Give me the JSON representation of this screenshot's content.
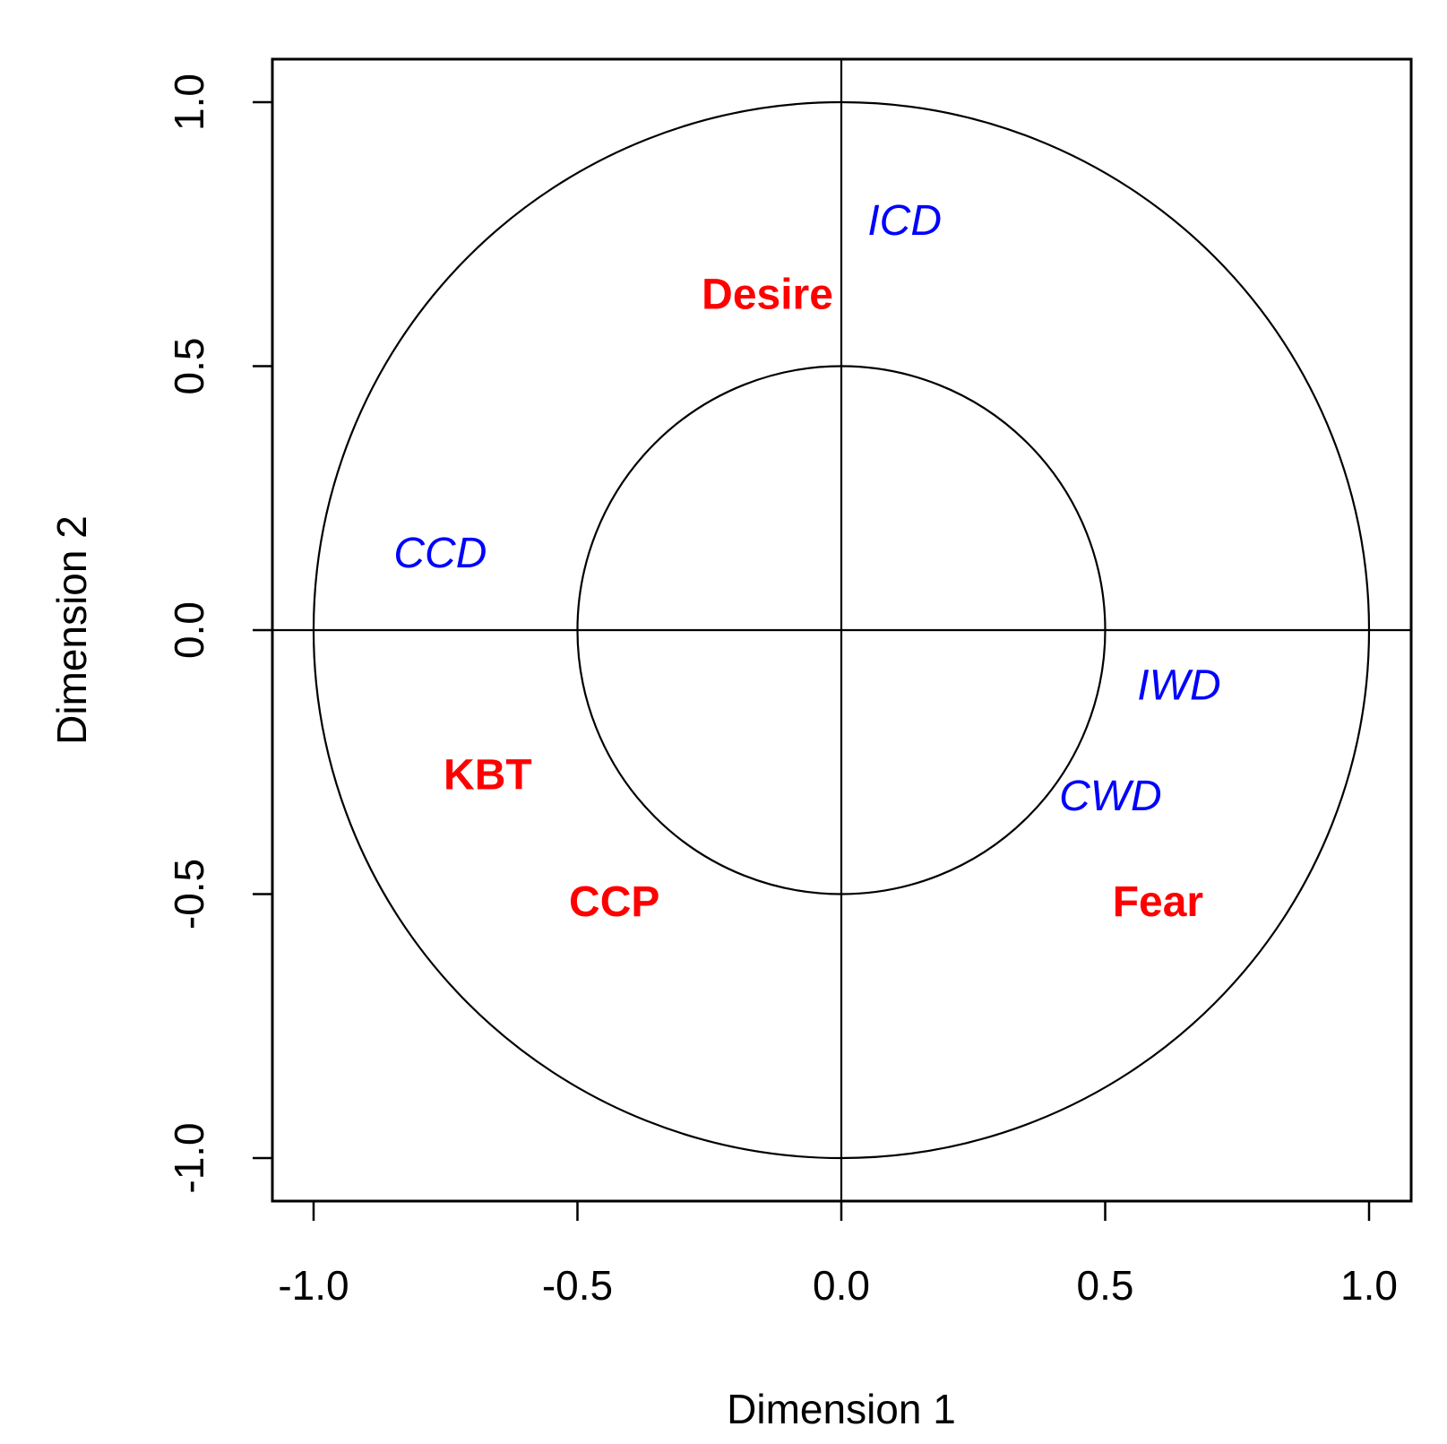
{
  "chart_data": {
    "type": "scatter",
    "title": "",
    "xlabel": "Dimension 1",
    "ylabel": "Dimension 2",
    "xlim": [
      -1.0,
      1.0
    ],
    "ylim": [
      -1.0,
      1.0
    ],
    "x_ticks": [
      -1.0,
      -0.5,
      0.0,
      0.5,
      1.0
    ],
    "y_ticks": [
      -1.0,
      -0.5,
      0.0,
      0.5,
      1.0
    ],
    "x_tick_labels": [
      "-1.0",
      "-0.5",
      "0.0",
      "0.5",
      "1.0"
    ],
    "y_tick_labels": [
      "-1.0",
      "-0.5",
      "0.0",
      "0.5",
      "1.0"
    ],
    "reference_circles": [
      0.5,
      1.0
    ],
    "reference_lines": {
      "x": 0.0,
      "y": 0.0
    },
    "grid": false,
    "legend": "none",
    "groups": [
      {
        "color": "#ff0000",
        "style": "bold",
        "points": [
          {
            "label": "Desire",
            "x": -0.14,
            "y": 0.63
          },
          {
            "label": "KBT",
            "x": -0.67,
            "y": -0.28
          },
          {
            "label": "CCP",
            "x": -0.43,
            "y": -0.52
          },
          {
            "label": "Fear",
            "x": 0.6,
            "y": -0.52
          }
        ]
      },
      {
        "color": "#0000ff",
        "style": "italic",
        "points": [
          {
            "label": "ICD",
            "x": 0.12,
            "y": 0.77
          },
          {
            "label": "CCD",
            "x": -0.76,
            "y": 0.14
          },
          {
            "label": "IWD",
            "x": 0.64,
            "y": -0.11
          },
          {
            "label": "CWD",
            "x": 0.51,
            "y": -0.32
          }
        ]
      }
    ]
  }
}
